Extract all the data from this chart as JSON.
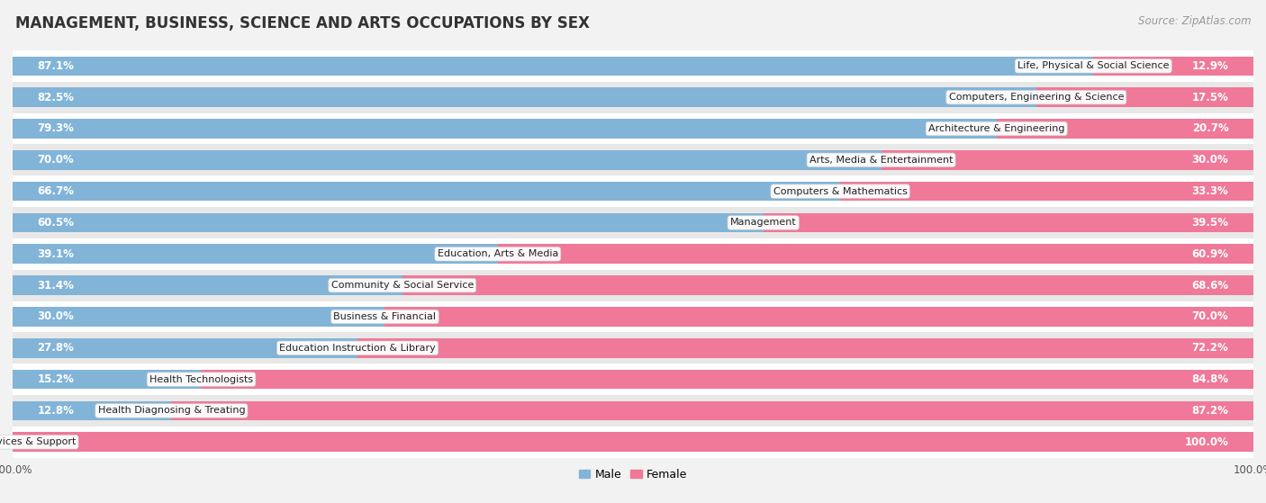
{
  "title": "MANAGEMENT, BUSINESS, SCIENCE AND ARTS OCCUPATIONS BY SEX",
  "source": "Source: ZipAtlas.com",
  "categories": [
    "Life, Physical & Social Science",
    "Computers, Engineering & Science",
    "Architecture & Engineering",
    "Arts, Media & Entertainment",
    "Computers & Mathematics",
    "Management",
    "Education, Arts & Media",
    "Community & Social Service",
    "Business & Financial",
    "Education Instruction & Library",
    "Health Technologists",
    "Health Diagnosing & Treating",
    "Legal Services & Support"
  ],
  "male": [
    87.1,
    82.5,
    79.3,
    70.0,
    66.7,
    60.5,
    39.1,
    31.4,
    30.0,
    27.8,
    15.2,
    12.8,
    0.0
  ],
  "female": [
    12.9,
    17.5,
    20.7,
    30.0,
    33.3,
    39.5,
    60.9,
    68.6,
    70.0,
    72.2,
    84.8,
    87.2,
    100.0
  ],
  "male_color": "#82B4D8",
  "female_color": "#F07898",
  "bg_color": "#f2f2f2",
  "row_bg_even": "#ffffff",
  "row_bg_odd": "#e8e8e8",
  "label_color_white": "#ffffff",
  "label_color_dark": "#555555",
  "title_fontsize": 12,
  "source_fontsize": 8.5,
  "bar_label_fontsize": 8.5,
  "category_label_fontsize": 8,
  "legend_fontsize": 9,
  "bar_height": 0.62,
  "xlim_min": 0,
  "xlim_max": 100
}
